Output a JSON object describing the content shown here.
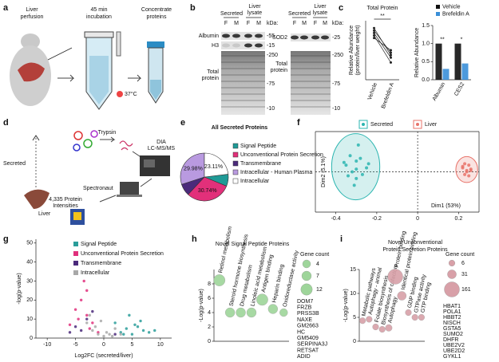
{
  "labels": [
    "a",
    "b",
    "c",
    "d",
    "e",
    "f",
    "g",
    "h",
    "i"
  ],
  "panel_a": {
    "steps": [
      [
        "Liver",
        "perfusion"
      ],
      [
        "45 min",
        "incubation"
      ],
      [
        "Concentrate",
        "proteins"
      ]
    ],
    "temperature": "37°C"
  },
  "panel_b": {
    "blots": [
      {
        "groups": [
          [
            "Secreted"
          ],
          [
            "Liver",
            "lysate"
          ]
        ],
        "lanes": [
          "F",
          "M",
          "F",
          "M"
        ],
        "unit": "kDa:",
        "bands": [
          "Albumin",
          "H3"
        ],
        "total": [
          "Total",
          "protein"
        ],
        "markers": [
          "-55",
          "-15",
          "-250",
          "-75",
          "-10"
        ]
      },
      {
        "groups": [
          [
            "Secreted"
          ],
          [
            "Liver",
            "lysate"
          ]
        ],
        "lanes": [
          "F",
          "M",
          "F",
          "M"
        ],
        "unit": "kDa:",
        "bands": [
          "SOD2"
        ],
        "total": [
          "Total",
          "protein"
        ],
        "markers": [
          "-25",
          "-250",
          "-75",
          "-10"
        ]
      }
    ]
  },
  "panel_d": {
    "secreted": "Secreted",
    "liver": "Liver",
    "trypsin": "Trypsin",
    "instrument": [
      "DIA",
      "LC-MS/MS"
    ],
    "software": "Spectronaut",
    "output": [
      "4,335 Protein",
      "Intensities"
    ]
  },
  "chart_data": [
    {
      "type": "line",
      "title": "Total Protein",
      "categories": [
        "Vehicle",
        "Brefeldin A"
      ],
      "ylabel": [
        "Relative Abundance",
        "(protein/liver weight)"
      ],
      "ylim": [
        0,
        1.2
      ],
      "annotation": "**",
      "series": [
        {
          "color": "#222222",
          "values": [
            1.0,
            0.55
          ]
        },
        {
          "color": "#222222",
          "values": [
            0.95,
            0.45
          ]
        },
        {
          "color": "#222222",
          "values": [
            0.9,
            0.35
          ]
        },
        {
          "color": "#222222",
          "values": [
            0.85,
            0.6
          ]
        },
        {
          "color": "#222222",
          "values": [
            1.05,
            0.5
          ]
        }
      ]
    },
    {
      "type": "bar",
      "categories": [
        "Albumin",
        "CES2"
      ],
      "ylabel": "Relative Abundance",
      "ylim": [
        0,
        1.5
      ],
      "yticks": [
        {
          "value": 0,
          "label": "0.0"
        },
        {
          "value": 0.5,
          "label": "0.5"
        },
        {
          "value": 1,
          "label": "1.0"
        },
        {
          "value": 1.5,
          "label": "1.5"
        }
      ],
      "annotations": [
        "**",
        "*"
      ],
      "series": [
        {
          "name": "Vehicle",
          "color": "#111111",
          "values": [
            1.0,
            1.0
          ]
        },
        {
          "name": "Brefeldin A",
          "color": "#3a8fd8",
          "values": [
            0.3,
            0.45
          ]
        }
      ]
    },
    {
      "type": "pie",
      "title": "All Secreted Proteins",
      "categories": [
        "Signal Peptide",
        "Unconventional Protein Secretion",
        "Transmembrane",
        "Intracellular - Human Plasma",
        "Intracellular"
      ],
      "values": [
        8.1,
        30.74,
        8.07,
        29.98,
        23.11
      ],
      "value_labels": [
        null,
        "30.74%",
        null,
        "29.98%",
        "23.11%"
      ],
      "colors": [
        "#1f9a96",
        "#e2307a",
        "#4b2a7b",
        "#b99ae0",
        "#ffffff"
      ]
    },
    {
      "type": "scatter",
      "xlabel": "Dim1 (53%)",
      "ylabel": "Dim2 (5.1%)",
      "xlim": [
        -0.5,
        0.3
      ],
      "xticks": [
        -0.4,
        -0.2,
        0,
        0.2
      ],
      "ylim": [
        -0.3,
        0.3
      ],
      "series": [
        {
          "name": "Secreted",
          "color": "#2bb5b0",
          "x": [
            -0.35,
            -0.3,
            -0.28,
            -0.32,
            -0.25,
            -0.3,
            -0.33,
            -0.27,
            -0.36,
            -0.29,
            -0.31,
            -0.24,
            -0.3,
            -0.34
          ],
          "values": [
            0.05,
            0.08,
            0.1,
            0,
            0.03,
            -0.05,
            0.12,
            -0.02,
            0.07,
            0.2,
            -0.1,
            0.06,
            0.02,
            -0.03
          ]
        },
        {
          "name": "Liver",
          "color": "#e8736a",
          "x": [
            0.22,
            0.24,
            0.25,
            0.23,
            0.26,
            0.24,
            0.23,
            0.25,
            0.22,
            0.26
          ],
          "values": [
            0.03,
            0.01,
            0.05,
            -0.02,
            0.02,
            0,
            0.06,
            -0.03,
            0.04,
            0.01
          ]
        }
      ]
    },
    {
      "type": "scatter",
      "xlabel": "Log2FC (secreted/liver)",
      "ylabel": "-log(p-value)",
      "xlim": [
        -12,
        12
      ],
      "xticks": [
        -10,
        -5,
        0,
        5,
        10
      ],
      "ylim": [
        0,
        52
      ],
      "yticks": [
        0,
        10,
        20,
        30,
        40,
        50
      ],
      "series": [
        {
          "name": "Signal Peptide",
          "color": "#2a9d9a",
          "x": [
            3,
            4,
            5,
            6,
            7,
            2,
            8,
            4.5,
            5.5,
            3.5,
            9,
            6.5
          ],
          "values": [
            3,
            5,
            2,
            6,
            4,
            8,
            3,
            12,
            7,
            2,
            4,
            9
          ]
        },
        {
          "name": "Unconventional Protein Secretion",
          "color": "#e0307c",
          "x": [
            -3,
            -4,
            -2,
            -5,
            -3.5,
            -2.5,
            -4.5,
            -1,
            -6,
            -3
          ],
          "values": [
            12,
            20,
            8,
            15,
            30,
            5,
            10,
            3,
            7,
            25
          ]
        },
        {
          "name": "Transmembrane",
          "color": "#4b2a7b",
          "x": [
            -5,
            -3,
            -4,
            2,
            -2,
            -6
          ],
          "values": [
            6,
            10,
            4,
            2,
            14,
            3
          ]
        },
        {
          "name": "Intracellular",
          "color": "#a8a8a8",
          "x": [
            -2,
            -1,
            0,
            1,
            2,
            -3,
            -1.5,
            0.5,
            1.5,
            -0.5,
            -2.5,
            3
          ],
          "values": [
            4,
            2,
            1,
            2,
            5,
            8,
            6,
            3,
            1,
            9,
            12,
            2
          ]
        }
      ]
    },
    {
      "type": "bubble",
      "title": "Novel Signal Peptide Proteins",
      "ylabel": "-Log(p-value)",
      "ylim": [
        0,
        10
      ],
      "yticks": [
        0,
        2,
        4,
        6,
        8
      ],
      "color": "#9ed59a",
      "categories": [
        "Retinol metabolism",
        "Steroid hormone biosynthesis",
        "Drug metabolism",
        "Linoleic acid metabolism",
        "Antigen binding",
        "Heparin binding",
        "Oxidoreductase activity"
      ],
      "values": [
        8.5,
        4,
        4,
        4,
        5.8,
        4.5,
        4
      ],
      "sizes": [
        12,
        7,
        7,
        7,
        12,
        7,
        4
      ],
      "size_legend": {
        "title": "Gene count",
        "values": [
          4,
          7,
          12
        ]
      },
      "genes": [
        "DOM7",
        "FRZB",
        "PRSS3B",
        "NAXE",
        "GM2663",
        "HC",
        "GM5409",
        "SERPINA3J",
        "RETSAT",
        "ADID"
      ]
    },
    {
      "type": "bubble",
      "title": [
        "Novel Unconventional",
        "Protein Secretion Proteins"
      ],
      "ylabel": "-Log(p-value)",
      "ylim": [
        0,
        15
      ],
      "yticks": [
        0,
        5,
        10,
        15
      ],
      "color": "#d8a0a8",
      "categories": [
        "Metabolic pathways",
        "Autophagy - animal",
        "Folate biosynthesis",
        "Biosynthesis of cofactors",
        "Autophagy",
        "Protein binding",
        "Identical protein binding",
        "GDP binding",
        "GTPase activity",
        "GTP binding"
      ],
      "values": [
        4.3,
        4.6,
        3.0,
        2.5,
        2.8,
        13.5,
        9.5,
        6,
        5,
        5
      ],
      "sizes": [
        6,
        6,
        6,
        6,
        10,
        161,
        31,
        6,
        6,
        6
      ],
      "size_legend": {
        "title": "Gene count",
        "values": [
          6,
          31,
          161
        ]
      },
      "genes": [
        "HBAT1",
        "POLA1",
        "HBBT2",
        "NISCH",
        "GSTA5",
        "SUMO2",
        "DHFR",
        "UBE2V2",
        "UBE2D2",
        "GYKL1"
      ]
    }
  ]
}
